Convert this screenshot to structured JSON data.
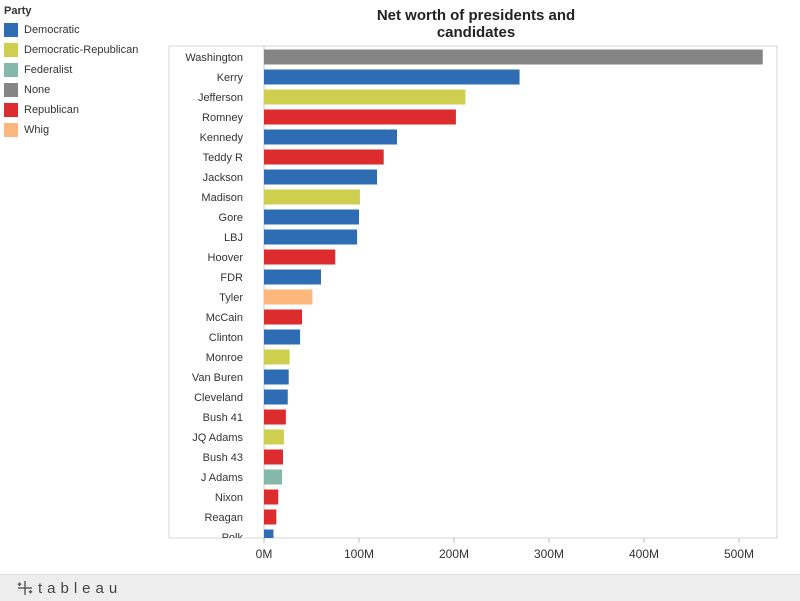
{
  "legend": {
    "title": "Party",
    "items": [
      {
        "label": "Democratic",
        "color": "#2e6db4"
      },
      {
        "label": "Democratic-Republican",
        "color": "#cfcf4f"
      },
      {
        "label": "Federalist",
        "color": "#86b8a9"
      },
      {
        "label": "None",
        "color": "#858585"
      },
      {
        "label": "Republican",
        "color": "#dc2c2e"
      },
      {
        "label": "Whig",
        "color": "#fbb77c"
      }
    ]
  },
  "footer": {
    "brand": "tableau"
  },
  "chart_data": {
    "type": "bar",
    "orientation": "horizontal",
    "title": "Net worth of presidents and candidates",
    "xlabel": "",
    "ylabel": "",
    "xlim": [
      -100,
      540
    ],
    "x_ticks": [
      0,
      100,
      200,
      300,
      400,
      500
    ],
    "x_tick_labels": [
      "0M",
      "100M",
      "200M",
      "300M",
      "400M",
      "500M"
    ],
    "grid": false,
    "legend_position": "top-left",
    "categories": [
      "Washington",
      "Kerry",
      "Jefferson",
      "Romney",
      "Kennedy",
      "Teddy R",
      "Jackson",
      "Madison",
      "Gore",
      "LBJ",
      "Hoover",
      "FDR",
      "Tyler",
      "McCain",
      "Clinton",
      "Monroe",
      "Van Buren",
      "Cleveland",
      "Bush 41",
      "JQ Adams",
      "Bush 43",
      "J Adams",
      "Nixon",
      "Reagan",
      "Polk"
    ],
    "values": [
      525,
      269,
      212,
      202,
      140,
      126,
      119,
      101,
      100,
      98,
      75,
      60,
      51,
      40,
      38,
      27,
      26,
      25,
      23,
      21,
      20,
      19,
      15,
      13,
      10
    ],
    "party": [
      "None",
      "Democratic",
      "Democratic-Republican",
      "Republican",
      "Democratic",
      "Republican",
      "Democratic",
      "Democratic-Republican",
      "Democratic",
      "Democratic",
      "Republican",
      "Democratic",
      "Whig",
      "Republican",
      "Democratic",
      "Democratic-Republican",
      "Democratic",
      "Democratic",
      "Republican",
      "Democratic-Republican",
      "Republican",
      "Federalist",
      "Republican",
      "Republican",
      "Democratic"
    ]
  }
}
